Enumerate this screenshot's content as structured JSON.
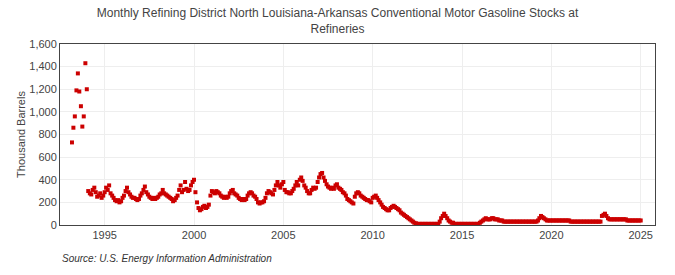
{
  "chart_data": {
    "type": "scatter",
    "title": "Monthly Refining District North Louisiana-Arkansas Conventional Motor Gasoline Stocks at\nRefineries",
    "y_label": "Thousand Barrels",
    "annotations": [
      "Source: U.S. Energy Information Administration"
    ],
    "color": "#cc0000",
    "marker": "square",
    "grid": true,
    "xlim": [
      1992.5,
      2025.8
    ],
    "xticks": [
      1995,
      2000,
      2005,
      2010,
      2015,
      2020,
      2025
    ],
    "ylim": [
      0,
      1600
    ],
    "yticks": [
      0,
      200,
      400,
      600,
      800,
      {
        "value": 1000,
        "label": "1,000"
      },
      {
        "value": 1200,
        "label": "1,200"
      },
      {
        "value": 1400,
        "label": "1,400"
      },
      {
        "value": 1600,
        "label": "1,600"
      }
    ],
    "x": [
      1993.17,
      1993.25,
      1993.33,
      1993.42,
      1993.5,
      1993.58,
      1993.67,
      1993.75,
      1993.83,
      1993.92,
      1994.0,
      1994.08,
      1994.17,
      1994.25,
      1994.33,
      1994.42,
      1994.5,
      1994.58,
      1994.67,
      1994.75,
      1994.83,
      1994.92,
      1995.0,
      1995.08,
      1995.17,
      1995.25,
      1995.33,
      1995.42,
      1995.5,
      1995.58,
      1995.67,
      1995.75,
      1995.83,
      1995.92,
      1996.0,
      1996.08,
      1996.17,
      1996.25,
      1996.33,
      1996.42,
      1996.5,
      1996.58,
      1996.67,
      1996.75,
      1996.83,
      1996.92,
      1997.0,
      1997.08,
      1997.17,
      1997.25,
      1997.33,
      1997.42,
      1997.5,
      1997.58,
      1997.67,
      1997.75,
      1997.83,
      1997.92,
      1998.0,
      1998.08,
      1998.17,
      1998.25,
      1998.33,
      1998.42,
      1998.5,
      1998.58,
      1998.67,
      1998.75,
      1998.83,
      1998.92,
      1999.0,
      1999.08,
      1999.17,
      1999.25,
      1999.33,
      1999.42,
      1999.5,
      1999.58,
      1999.67,
      1999.75,
      1999.83,
      1999.92,
      2000.0,
      2000.08,
      2000.17,
      2000.25,
      2000.33,
      2000.42,
      2000.5,
      2000.58,
      2000.67,
      2000.75,
      2000.83,
      2000.92,
      2001.0,
      2001.08,
      2001.17,
      2001.25,
      2001.33,
      2001.42,
      2001.5,
      2001.58,
      2001.67,
      2001.75,
      2001.83,
      2001.92,
      2002.0,
      2002.08,
      2002.17,
      2002.25,
      2002.33,
      2002.42,
      2002.5,
      2002.58,
      2002.67,
      2002.75,
      2002.83,
      2002.92,
      2003.0,
      2003.08,
      2003.17,
      2003.25,
      2003.33,
      2003.42,
      2003.5,
      2003.58,
      2003.67,
      2003.75,
      2003.83,
      2003.92,
      2004.0,
      2004.08,
      2004.17,
      2004.25,
      2004.33,
      2004.42,
      2004.5,
      2004.58,
      2004.67,
      2004.75,
      2004.83,
      2004.92,
      2005.0,
      2005.08,
      2005.17,
      2005.25,
      2005.33,
      2005.42,
      2005.5,
      2005.58,
      2005.67,
      2005.75,
      2005.83,
      2005.92,
      2006.0,
      2006.08,
      2006.17,
      2006.25,
      2006.33,
      2006.42,
      2006.5,
      2006.58,
      2006.67,
      2006.75,
      2006.83,
      2006.92,
      2007.0,
      2007.08,
      2007.17,
      2007.25,
      2007.33,
      2007.42,
      2007.5,
      2007.58,
      2007.67,
      2007.75,
      2007.83,
      2007.92,
      2008.0,
      2008.08,
      2008.17,
      2008.25,
      2008.33,
      2008.42,
      2008.5,
      2008.58,
      2008.67,
      2008.75,
      2008.83,
      2008.92,
      2009.0,
      2009.08,
      2009.17,
      2009.25,
      2009.33,
      2009.42,
      2009.5,
      2009.58,
      2009.67,
      2009.75,
      2009.83,
      2009.92,
      2010.0,
      2010.08,
      2010.17,
      2010.25,
      2010.33,
      2010.42,
      2010.5,
      2010.58,
      2010.67,
      2010.75,
      2010.83,
      2010.92,
      2011.0,
      2011.08,
      2011.17,
      2011.25,
      2011.33,
      2011.42,
      2011.5,
      2011.58,
      2011.67,
      2011.75,
      2011.83,
      2011.92,
      2012.0,
      2012.08,
      2012.17,
      2012.25,
      2012.33,
      2012.42,
      2012.5,
      2012.58,
      2012.67,
      2012.75,
      2012.83,
      2012.92,
      2013.0,
      2013.08,
      2013.17,
      2013.25,
      2013.33,
      2013.42,
      2013.5,
      2013.58,
      2013.67,
      2013.75,
      2013.83,
      2013.92,
      2014.0,
      2014.08,
      2014.17,
      2014.25,
      2014.33,
      2014.42,
      2014.5,
      2014.58,
      2014.67,
      2014.75,
      2014.83,
      2014.92,
      2015.0,
      2015.08,
      2015.17,
      2015.25,
      2015.33,
      2015.42,
      2015.5,
      2015.58,
      2015.67,
      2015.75,
      2015.83,
      2015.92,
      2016.0,
      2016.08,
      2016.17,
      2016.25,
      2016.33,
      2016.42,
      2016.5,
      2016.58,
      2016.67,
      2016.75,
      2016.83,
      2016.92,
      2017.0,
      2017.08,
      2017.17,
      2017.25,
      2017.33,
      2017.42,
      2017.5,
      2017.58,
      2017.67,
      2017.75,
      2017.83,
      2017.92,
      2018.0,
      2018.08,
      2018.17,
      2018.25,
      2018.33,
      2018.42,
      2018.5,
      2018.58,
      2018.67,
      2018.75,
      2018.83,
      2018.92,
      2019.0,
      2019.08,
      2019.17,
      2019.25,
      2019.33,
      2019.42,
      2019.5,
      2019.58,
      2019.67,
      2019.75,
      2019.83,
      2019.92,
      2020.0,
      2020.08,
      2020.17,
      2020.25,
      2020.33,
      2020.42,
      2020.5,
      2020.58,
      2020.67,
      2020.75,
      2020.83,
      2020.92,
      2021.0,
      2021.08,
      2021.17,
      2021.25,
      2021.33,
      2021.42,
      2021.5,
      2021.58,
      2021.67,
      2021.75,
      2021.83,
      2021.92,
      2022.0,
      2022.08,
      2022.17,
      2022.25,
      2022.33,
      2022.42,
      2022.5,
      2022.58,
      2022.67,
      2022.75,
      2022.83,
      2022.92,
      2023.0,
      2023.08,
      2023.17,
      2023.25,
      2023.33,
      2023.42,
      2023.5,
      2023.58,
      2023.67,
      2023.75,
      2023.83,
      2023.92,
      2024.0,
      2024.08,
      2024.17,
      2024.25,
      2024.33,
      2024.42,
      2024.5,
      2024.58,
      2024.67,
      2024.75,
      2024.83,
      2024.92,
      2025.0
    ],
    "values": [
      730,
      860,
      960,
      1190,
      1340,
      1180,
      1050,
      870,
      960,
      1430,
      1200,
      300,
      280,
      270,
      310,
      330,
      290,
      250,
      260,
      280,
      240,
      260,
      290,
      330,
      310,
      350,
      280,
      260,
      240,
      220,
      210,
      220,
      200,
      210,
      240,
      260,
      300,
      330,
      290,
      270,
      250,
      240,
      240,
      230,
      220,
      230,
      260,
      280,
      310,
      340,
      290,
      270,
      250,
      240,
      230,
      240,
      230,
      240,
      250,
      270,
      280,
      310,
      280,
      270,
      260,
      250,
      240,
      230,
      210,
      220,
      240,
      260,
      310,
      350,
      290,
      310,
      380,
      320,
      300,
      310,
      350,
      380,
      400,
      290,
      200,
      150,
      130,
      140,
      160,
      170,
      150,
      160,
      180,
      260,
      300,
      290,
      280,
      300,
      290,
      280,
      260,
      250,
      240,
      250,
      240,
      250,
      280,
      300,
      310,
      280,
      270,
      260,
      240,
      230,
      220,
      230,
      220,
      230,
      260,
      280,
      290,
      280,
      260,
      250,
      230,
      200,
      190,
      200,
      200,
      210,
      240,
      280,
      300,
      290,
      280,
      270,
      310,
      350,
      380,
      350,
      330,
      360,
      380,
      310,
      290,
      290,
      280,
      280,
      300,
      320,
      350,
      380,
      350,
      400,
      420,
      390,
      350,
      330,
      300,
      280,
      280,
      310,
      330,
      320,
      330,
      380,
      420,
      450,
      460,
      420,
      390,
      360,
      340,
      330,
      320,
      330,
      320,
      350,
      360,
      330,
      320,
      310,
      290,
      280,
      260,
      230,
      220,
      210,
      200,
      190,
      250,
      280,
      290,
      280,
      260,
      250,
      240,
      230,
      220,
      220,
      210,
      200,
      240,
      250,
      260,
      240,
      220,
      200,
      180,
      160,
      150,
      140,
      130,
      130,
      150,
      160,
      170,
      160,
      150,
      140,
      130,
      110,
      100,
      90,
      80,
      70,
      60,
      50,
      40,
      30,
      20,
      15,
      10,
      10,
      10,
      10,
      10,
      10,
      10,
      10,
      10,
      10,
      10,
      10,
      10,
      10,
      10,
      30,
      60,
      80,
      100,
      80,
      60,
      40,
      30,
      20,
      20,
      10,
      10,
      10,
      10,
      10,
      10,
      10,
      10,
      10,
      10,
      10,
      10,
      10,
      10,
      10,
      10,
      10,
      20,
      30,
      40,
      50,
      60,
      50,
      50,
      50,
      60,
      60,
      50,
      50,
      50,
      40,
      40,
      40,
      30,
      30,
      30,
      30,
      30,
      30,
      30,
      30,
      30,
      30,
      30,
      30,
      30,
      30,
      30,
      30,
      30,
      30,
      30,
      30,
      30,
      30,
      30,
      40,
      60,
      80,
      70,
      60,
      50,
      40,
      40,
      40,
      40,
      40,
      40,
      40,
      40,
      40,
      40,
      40,
      40,
      40,
      40,
      40,
      40,
      30,
      30,
      30,
      30,
      30,
      30,
      30,
      30,
      30,
      30,
      30,
      30,
      30,
      30,
      30,
      30,
      30,
      30,
      30,
      30,
      30,
      80,
      90,
      100,
      80,
      60,
      50,
      50,
      50,
      50,
      50,
      50,
      50,
      50,
      50,
      50,
      50,
      50,
      40,
      40,
      40,
      40,
      40,
      40,
      40,
      40,
      40,
      40
    ]
  }
}
